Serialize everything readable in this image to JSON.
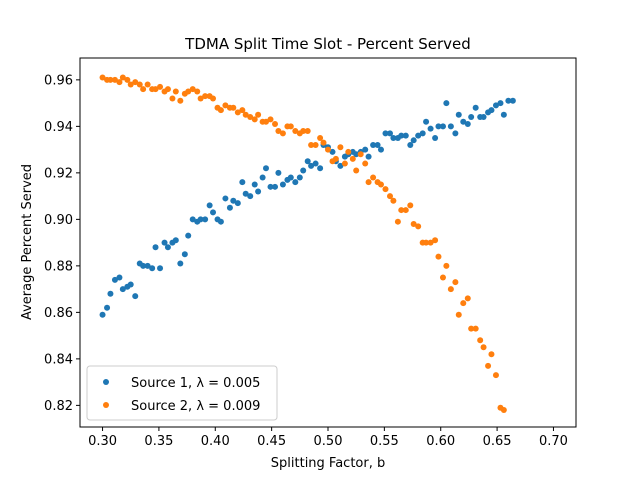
{
  "chart_data": {
    "type": "scatter",
    "title": "TDMA Split Time Slot - Percent Served",
    "xlabel": "Splitting Factor, b",
    "ylabel": "Average Percent Served",
    "xlim": [
      0.28,
      0.72
    ],
    "ylim": [
      0.8107,
      0.9694
    ],
    "xticks": [
      0.3,
      0.35,
      0.4,
      0.45,
      0.5,
      0.55,
      0.6,
      0.65,
      0.7
    ],
    "xtick_labels": [
      "0.30",
      "0.35",
      "0.40",
      "0.45",
      "0.50",
      "0.55",
      "0.60",
      "0.65",
      "0.70"
    ],
    "yticks": [
      0.82,
      0.84,
      0.86,
      0.88,
      0.9,
      0.92,
      0.94,
      0.96
    ],
    "ytick_labels": [
      "0.82",
      "0.84",
      "0.86",
      "0.88",
      "0.90",
      "0.92",
      "0.94",
      "0.96"
    ],
    "grid": false,
    "legend_position": "lower-left",
    "x": [
      0.3,
      0.304,
      0.307,
      0.311,
      0.315,
      0.318,
      0.322,
      0.325,
      0.329,
      0.333,
      0.336,
      0.34,
      0.344,
      0.347,
      0.351,
      0.355,
      0.358,
      0.362,
      0.365,
      0.369,
      0.373,
      0.376,
      0.38,
      0.384,
      0.387,
      0.391,
      0.395,
      0.398,
      0.402,
      0.405,
      0.409,
      0.413,
      0.416,
      0.42,
      0.424,
      0.427,
      0.431,
      0.435,
      0.438,
      0.442,
      0.445,
      0.449,
      0.453,
      0.456,
      0.46,
      0.464,
      0.467,
      0.471,
      0.475,
      0.478,
      0.482,
      0.485,
      0.489,
      0.493,
      0.496,
      0.5,
      0.504,
      0.507,
      0.511,
      0.515,
      0.518,
      0.522,
      0.525,
      0.529,
      0.533,
      0.536,
      0.54,
      0.544,
      0.547,
      0.551,
      0.555,
      0.558,
      0.562,
      0.565,
      0.569,
      0.573,
      0.576,
      0.58,
      0.584,
      0.587,
      0.591,
      0.595,
      0.598,
      0.602,
      0.605,
      0.609,
      0.613,
      0.616,
      0.62,
      0.624,
      0.627,
      0.631,
      0.635,
      0.638,
      0.642,
      0.645,
      0.649,
      0.653,
      0.656,
      0.66,
      0.664,
      0.667,
      0.671,
      0.675,
      0.678,
      0.682,
      0.685,
      0.689,
      0.693,
      0.696,
      0.7
    ],
    "series": [
      {
        "name": "Source 1, λ = 0.005",
        "color": "#1f77b4",
        "values": [
          0.859,
          0.862,
          0.868,
          0.874,
          0.875,
          0.87,
          0.871,
          0.872,
          0.867,
          0.881,
          0.88,
          0.88,
          0.879,
          0.888,
          0.879,
          0.89,
          0.888,
          0.89,
          0.891,
          0.881,
          0.885,
          0.893,
          0.9,
          0.899,
          0.9,
          0.9,
          0.906,
          0.903,
          0.9,
          0.899,
          0.909,
          0.905,
          0.908,
          0.907,
          0.916,
          0.911,
          0.91,
          0.915,
          0.912,
          0.918,
          0.922,
          0.914,
          0.914,
          0.92,
          0.915,
          0.917,
          0.918,
          0.916,
          0.918,
          0.921,
          0.925,
          0.923,
          0.924,
          0.922,
          0.932,
          0.931,
          0.929,
          0.925,
          0.923,
          0.927,
          0.928,
          0.929,
          0.928,
          0.929,
          0.93,
          0.927,
          0.932,
          0.932,
          0.93,
          0.937,
          0.937,
          0.935,
          0.935,
          0.936,
          0.936,
          0.932,
          0.934,
          0.936,
          0.937,
          0.942,
          0.939,
          0.935,
          0.94,
          0.94,
          0.95,
          0.94,
          0.937,
          0.945,
          0.942,
          0.941,
          0.944,
          0.948,
          0.944,
          0.944,
          0.946,
          0.947,
          0.949,
          0.95,
          0.945,
          0.951,
          0.951
        ],
        "x_start_index": 0
      },
      {
        "name": "Source 2, λ = 0.009",
        "color": "#ff7f0e",
        "values": [
          0.961,
          0.96,
          0.96,
          0.96,
          0.959,
          0.961,
          0.96,
          0.958,
          0.959,
          0.958,
          0.956,
          0.958,
          0.956,
          0.956,
          0.957,
          0.955,
          0.956,
          0.952,
          0.955,
          0.951,
          0.954,
          0.955,
          0.956,
          0.955,
          0.952,
          0.953,
          0.953,
          0.952,
          0.948,
          0.947,
          0.949,
          0.948,
          0.948,
          0.946,
          0.947,
          0.945,
          0.944,
          0.943,
          0.945,
          0.942,
          0.942,
          0.943,
          0.941,
          0.938,
          0.937,
          0.94,
          0.94,
          0.938,
          0.937,
          0.938,
          0.938,
          0.932,
          0.932,
          0.935,
          0.933,
          0.93,
          0.925,
          0.926,
          0.931,
          0.924,
          0.929,
          0.926,
          0.921,
          0.928,
          0.924,
          0.916,
          0.918,
          0.916,
          0.915,
          0.913,
          0.91,
          0.908,
          0.899,
          0.904,
          0.904,
          0.906,
          0.898,
          0.897,
          0.89,
          0.89,
          0.89,
          0.891,
          0.884,
          0.875,
          0.88,
          0.87,
          0.873,
          0.859,
          0.864,
          0.866,
          0.853,
          0.853,
          0.848,
          0.845,
          0.837,
          0.842,
          0.833,
          0.819,
          0.818
        ],
        "x_start_index": 0
      }
    ]
  }
}
